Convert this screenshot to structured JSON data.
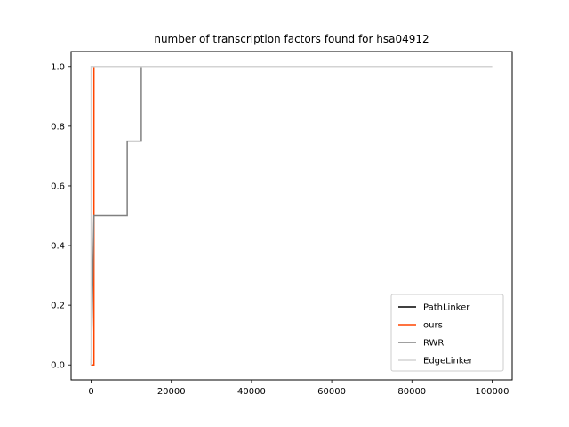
{
  "chart_data": {
    "type": "line",
    "title": "number of transcription factors found for hsa04912",
    "xlabel": "",
    "ylabel": "",
    "xlim": [
      -5000,
      105000
    ],
    "ylim": [
      -0.05,
      1.05
    ],
    "xticks": [
      0,
      20000,
      40000,
      60000,
      80000,
      100000
    ],
    "xtick_labels": [
      "0",
      "20000",
      "40000",
      "60000",
      "80000",
      "100000"
    ],
    "yticks": [
      0.0,
      0.2,
      0.4,
      0.6,
      0.8,
      1.0
    ],
    "ytick_labels": [
      "0.0",
      "0.2",
      "0.4",
      "0.6",
      "0.8",
      "1.0"
    ],
    "grid": false,
    "legend_position": "lower-right",
    "series": [
      {
        "name": "PathLinker",
        "color": "#000000",
        "x": [
          0,
          100,
          100,
          100000
        ],
        "y": [
          0,
          0,
          1.0,
          1.0
        ]
      },
      {
        "name": "ours",
        "color": "#ff4500",
        "x": [
          0,
          700,
          700,
          100000
        ],
        "y": [
          0,
          0,
          1.0,
          1.0
        ]
      },
      {
        "name": "RWR",
        "color": "#808080",
        "x": [
          0,
          700,
          700,
          9000,
          9000,
          12500,
          12500,
          100000
        ],
        "y": [
          0,
          0.5,
          0.5,
          0.5,
          0.75,
          0.75,
          1.0,
          1.0
        ]
      },
      {
        "name": "EdgeLinker",
        "color": "#d3d3d3",
        "x": [
          0,
          0,
          100000
        ],
        "y": [
          0,
          1.0,
          1.0
        ]
      }
    ]
  }
}
